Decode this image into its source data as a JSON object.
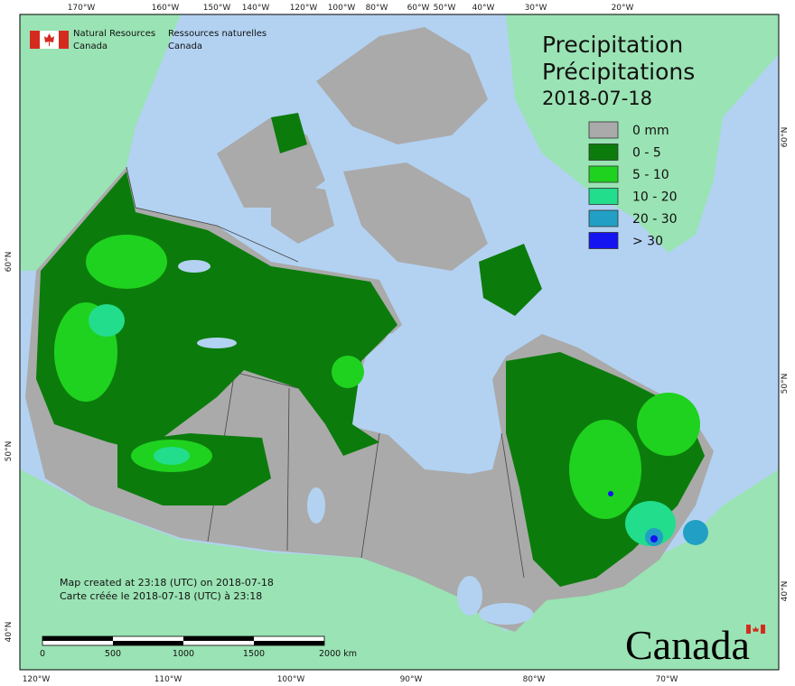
{
  "header": {
    "en_line1": "Natural Resources",
    "en_line2": "Canada",
    "fr_line1": "Ressources naturelles",
    "fr_line2": "Canada"
  },
  "title": {
    "line1": "Precipitation",
    "line2": "Précipitations",
    "date": "2018-07-18"
  },
  "legend": {
    "items": [
      {
        "label": "0 mm",
        "color": "#aaaaaa"
      },
      {
        "label": "0 - 5",
        "color": "#0b7c0b"
      },
      {
        "label": "5 - 10",
        "color": "#1fd21f"
      },
      {
        "label": "10 - 20",
        "color": "#22dd8c"
      },
      {
        "label": "20 - 30",
        "color": "#229fc4"
      },
      {
        "label": "> 30",
        "color": "#1414f0"
      }
    ]
  },
  "axes": {
    "top": [
      "170°W",
      "160°W",
      "150°W",
      "140°W",
      "120°W",
      "100°W",
      "80°W",
      "60°W",
      "50°W",
      "40°W",
      "30°W",
      "20°W"
    ],
    "bottom": [
      "120°W",
      "110°W",
      "100°W",
      "90°W",
      "80°W",
      "70°W"
    ],
    "left": [
      "60°N",
      "50°N",
      "40°N"
    ],
    "right": [
      "60°N",
      "50°N",
      "40°N"
    ]
  },
  "footer": {
    "line1": "Map created at 23:18 (UTC) on 2018-07-18",
    "line2": "Carte créée le 2018-07-18 (UTC) à 23:18"
  },
  "scale_bar": {
    "labels": [
      "0",
      "500",
      "1000",
      "1500",
      "2000 km"
    ]
  },
  "wordmark": "Canada"
}
